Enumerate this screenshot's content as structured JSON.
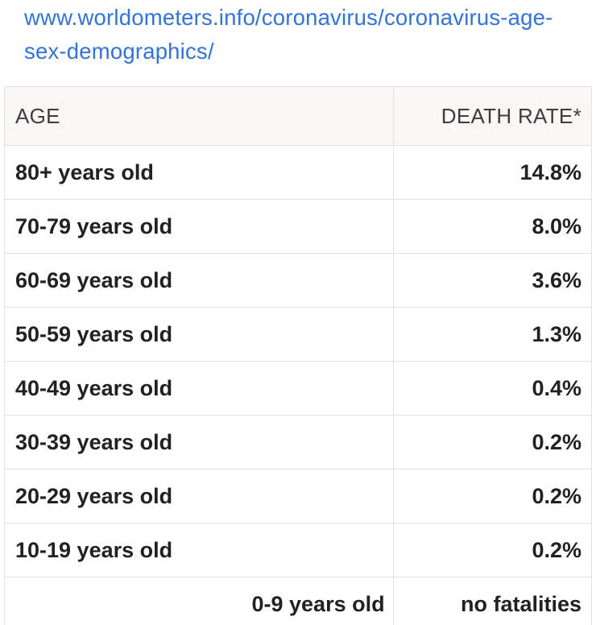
{
  "browser": {
    "url_line1": "www.worldometers.info/coronavirus/coronavirus-age-",
    "url_line2": "sex-demographics/"
  },
  "table": {
    "columns": [
      "AGE",
      "DEATH RATE*"
    ],
    "rows": [
      {
        "age": "80+ years old",
        "death_rate": "14.8%"
      },
      {
        "age": "70-79 years old",
        "death_rate": "8.0%"
      },
      {
        "age": "60-69 years old",
        "death_rate": "3.6%"
      },
      {
        "age": "50-59 years old",
        "death_rate": "1.3%"
      },
      {
        "age": "40-49 years old",
        "death_rate": "0.4%"
      },
      {
        "age": "30-39 years old",
        "death_rate": "0.2%"
      },
      {
        "age": "20-29 years old",
        "death_rate": "0.2%"
      },
      {
        "age": "10-19 years old",
        "death_rate": "0.2%"
      },
      {
        "age": "0-9 years old",
        "death_rate": "no fatalities"
      }
    ]
  },
  "colors": {
    "link_blue": "#3273dc",
    "header_background": "#faf7f6",
    "table_border": "#e2e0e0",
    "header_text": "#3d3d3d",
    "cell_text": "#1f2123",
    "page_background": "#ffffff"
  }
}
